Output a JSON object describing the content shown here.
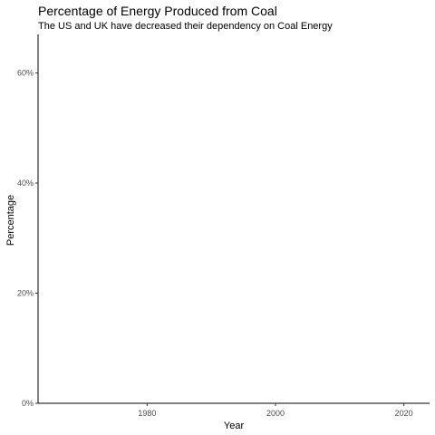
{
  "chart_data": {
    "type": "line",
    "title": "Percentage of Energy Produced from Coal",
    "subtitle": "The US and UK have decreased their dependency on Coal Energy",
    "xlabel": "Year",
    "ylabel": "Percentage",
    "xlim": [
      1963,
      2024
    ],
    "ylim": [
      0,
      0.67
    ],
    "x_ticks": [
      1980,
      2000,
      2020
    ],
    "x_tick_labels": [
      "1980",
      "2000",
      "2020"
    ],
    "y_ticks": [
      0,
      0.2,
      0.4,
      0.6
    ],
    "y_tick_labels": [
      "0%",
      "20%",
      "40%",
      "60%"
    ],
    "grid": false,
    "series": []
  }
}
